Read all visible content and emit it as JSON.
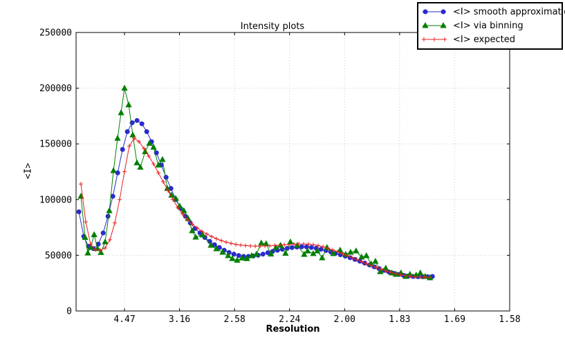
{
  "figure": {
    "title": "Intensity plots",
    "background_color": "#ffffff",
    "axes_color": "#000000",
    "grid_color": "#c8c8c8"
  },
  "legend": {
    "items": [
      {
        "label": "<I> smooth approximation",
        "marker": "circle",
        "color": "#2a2ace"
      },
      {
        "label": "<I> via binning",
        "marker": "triangle",
        "color": "#007f00"
      },
      {
        "label": "<I> expected",
        "marker": "plus",
        "color": "#e62020"
      }
    ]
  },
  "chart_data": {
    "type": "line",
    "title": "Intensity plots",
    "xlabel": "Resolution",
    "ylabel": "<I>",
    "grid": "dotted, at every major tick, both axes",
    "legend_position": "upper right, overlapping top-right corner of axes",
    "x_axis": {
      "note": "axis is linear in 1/d^2; tick labels are resolution d in Angstrom",
      "tick_labels": [
        "4.47",
        "3.16",
        "2.58",
        "2.24",
        "2.00",
        "1.83",
        "1.69",
        "1.58"
      ],
      "tick_positions_s2": [
        0.05,
        0.1,
        0.15,
        0.2,
        0.25,
        0.3,
        0.35,
        0.4
      ],
      "range_s2": [
        0.006,
        0.4
      ]
    },
    "y_axis": {
      "tick_labels": [
        "0",
        "50000",
        "100000",
        "150000",
        "200000",
        "250000"
      ],
      "tick_values": [
        0,
        50000,
        100000,
        150000,
        200000,
        250000
      ],
      "range": [
        0,
        250000
      ]
    },
    "series": [
      {
        "name": "<I> smooth approximation",
        "marker": "circle",
        "color": "#2a2ace",
        "x_start_s2": 0.0086,
        "x_step_s2": 0.0044,
        "values": [
          89000,
          67000,
          58000,
          56000,
          60000,
          70000,
          85000,
          103000,
          124000,
          145000,
          161000,
          169000,
          171000,
          168000,
          161000,
          152000,
          142000,
          131000,
          120000,
          110000,
          100000,
          92000,
          85000,
          79000,
          74000,
          70000,
          66000,
          62500,
          59500,
          57000,
          54500,
          52500,
          51000,
          49800,
          49000,
          49000,
          49300,
          50000,
          51000,
          52300,
          53500,
          54500,
          55400,
          56200,
          56900,
          57400,
          57600,
          57500,
          57000,
          56300,
          55400,
          54300,
          53000,
          51800,
          50500,
          49200,
          47800,
          46300,
          44700,
          43000,
          41300,
          39600,
          38000,
          36400,
          35000,
          33800,
          32800,
          32000,
          31400,
          31000,
          30800,
          30700,
          30800,
          31000
        ]
      },
      {
        "name": "<I> via binning",
        "marker": "triangle",
        "color": "#007f00",
        "points_s2_value": [
          [
            0.0104,
            103000
          ],
          [
            0.0142,
            66000
          ],
          [
            0.0167,
            52000
          ],
          [
            0.0192,
            57000
          ],
          [
            0.0224,
            68500
          ],
          [
            0.0255,
            56000
          ],
          [
            0.0286,
            52500
          ],
          [
            0.0324,
            62000
          ],
          [
            0.0362,
            90000
          ],
          [
            0.04,
            126000
          ],
          [
            0.0437,
            155000
          ],
          [
            0.0469,
            178000
          ],
          [
            0.05,
            200000
          ],
          [
            0.0538,
            185000
          ],
          [
            0.0575,
            158000
          ],
          [
            0.0613,
            133000
          ],
          [
            0.0644,
            129000
          ],
          [
            0.0688,
            143000
          ],
          [
            0.0726,
            150500
          ],
          [
            0.0764,
            147000
          ],
          [
            0.0808,
            131000
          ],
          [
            0.0845,
            136000
          ],
          [
            0.0889,
            110000
          ],
          [
            0.0927,
            104000
          ],
          [
            0.0965,
            101000
          ],
          [
            0.1002,
            94000
          ],
          [
            0.104,
            90000
          ],
          [
            0.1078,
            83000
          ],
          [
            0.1115,
            72000
          ],
          [
            0.1147,
            66300
          ],
          [
            0.121,
            68200
          ],
          [
            0.1285,
            58900
          ],
          [
            0.1335,
            55800
          ],
          [
            0.1392,
            52700
          ],
          [
            0.1442,
            49600
          ],
          [
            0.148,
            47000
          ],
          [
            0.1524,
            45500
          ],
          [
            0.1568,
            47500
          ],
          [
            0.1612,
            47000
          ],
          [
            0.1656,
            49600
          ],
          [
            0.1699,
            51000
          ],
          [
            0.1743,
            61000
          ],
          [
            0.1787,
            60400
          ],
          [
            0.1831,
            51100
          ],
          [
            0.1875,
            57000
          ],
          [
            0.1919,
            58900
          ],
          [
            0.1963,
            51700
          ],
          [
            0.2007,
            62000
          ],
          [
            0.207,
            58900
          ],
          [
            0.2133,
            50800
          ],
          [
            0.2164,
            53900
          ],
          [
            0.2215,
            51500
          ],
          [
            0.2252,
            53900
          ],
          [
            0.2296,
            47700
          ],
          [
            0.234,
            57000
          ],
          [
            0.2397,
            51500
          ],
          [
            0.2459,
            54600
          ],
          [
            0.251,
            50800
          ],
          [
            0.2554,
            52700
          ],
          [
            0.2604,
            53900
          ],
          [
            0.2654,
            48400
          ],
          [
            0.2698,
            49600
          ],
          [
            0.2742,
            42200
          ],
          [
            0.278,
            44600
          ],
          [
            0.2824,
            35300
          ],
          [
            0.2874,
            38400
          ],
          [
            0.293,
            34100
          ],
          [
            0.2968,
            32900
          ],
          [
            0.3012,
            34100
          ],
          [
            0.3056,
            31000
          ],
          [
            0.3094,
            32900
          ],
          [
            0.315,
            32200
          ],
          [
            0.3188,
            34100
          ],
          [
            0.3232,
            31000
          ],
          [
            0.3276,
            29800
          ]
        ]
      },
      {
        "name": "<I> expected",
        "marker": "plus",
        "color": "#e62020",
        "x_start_s2": 0.0104,
        "x_step_s2": 0.0044,
        "values": [
          114000,
          80000,
          60000,
          55000,
          54500,
          56500,
          64000,
          79000,
          100000,
          125000,
          148000,
          155000,
          152000,
          146000,
          139000,
          132000,
          124000,
          116000,
          108000,
          100000,
          93000,
          87000,
          82000,
          78000,
          74500,
          71500,
          69000,
          66800,
          64800,
          63200,
          61800,
          60700,
          59800,
          59200,
          58700,
          58400,
          58200,
          58200,
          58300,
          58500,
          58800,
          59100,
          59400,
          59700,
          60000,
          60200,
          60200,
          60000,
          59500,
          58700,
          57600,
          56300,
          54800,
          53200,
          51500,
          49700,
          47900,
          46100,
          44300,
          42500,
          40800,
          39100,
          37500,
          36000,
          34700,
          33500,
          32500,
          31700,
          31100,
          30700,
          30400,
          30300,
          30300
        ]
      }
    ]
  }
}
